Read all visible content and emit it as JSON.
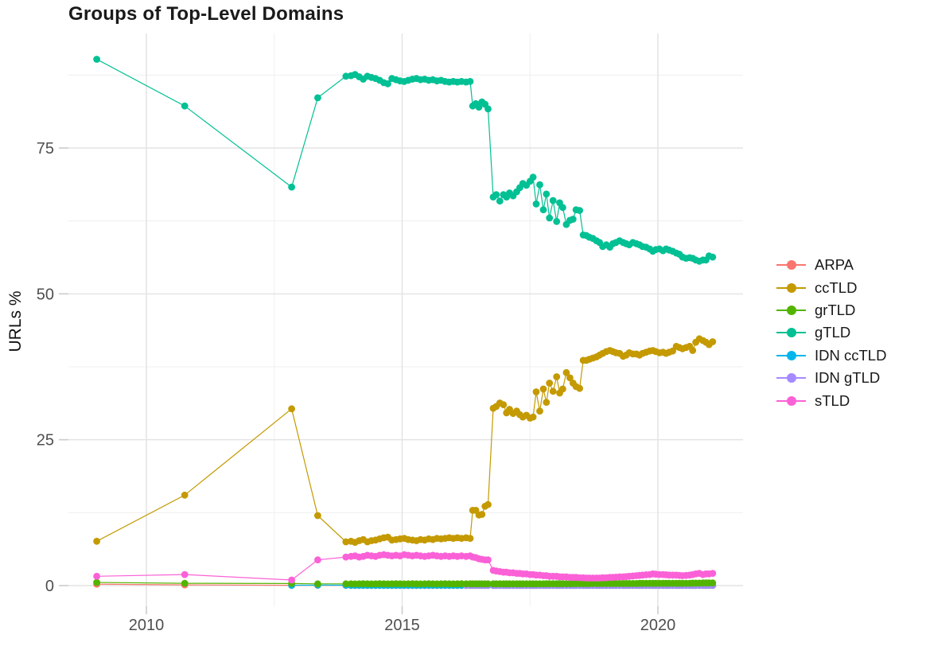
{
  "chart_data": {
    "type": "line",
    "title": "Groups of Top-Level Domains",
    "xlabel": "",
    "ylabel": "URLs %",
    "legend_position": "right",
    "grid": true,
    "x_axis": {
      "ticks": [
        2010,
        2015,
        2020
      ],
      "tick_labels": [
        "2010",
        "2015",
        "2020"
      ],
      "minor": [
        2012.5,
        2017.5
      ],
      "range": [
        2008.43,
        2021.67
      ]
    },
    "y_axis": {
      "ticks": [
        0,
        25,
        50,
        75
      ],
      "tick_labels": [
        "0",
        "25",
        "50",
        "75"
      ],
      "minor": [
        12.5,
        37.5,
        62.5,
        87.5
      ],
      "range": [
        -4.5,
        94.7
      ]
    },
    "x": [
      2009.03,
      2010.75,
      2012.84,
      2013.35,
      2013.9,
      2014.0,
      2014.08,
      2014.16,
      2014.24,
      2014.32,
      2014.4,
      2014.48,
      2014.56,
      2014.64,
      2014.72,
      2014.8,
      2014.88,
      2014.96,
      2015.04,
      2015.12,
      2015.2,
      2015.28,
      2015.36,
      2015.44,
      2015.52,
      2015.6,
      2015.68,
      2015.76,
      2015.84,
      2015.92,
      2016.0,
      2016.08,
      2016.16,
      2016.25,
      2016.33,
      2016.38,
      2016.44,
      2016.5,
      2016.56,
      2016.62,
      2016.68,
      2016.78,
      2016.84,
      2016.91,
      2016.98,
      2017.04,
      2017.1,
      2017.17,
      2017.24,
      2017.3,
      2017.36,
      2017.43,
      2017.5,
      2017.56,
      2017.62,
      2017.69,
      2017.76,
      2017.82,
      2017.88,
      2017.95,
      2018.02,
      2018.08,
      2018.14,
      2018.21,
      2018.28,
      2018.34,
      2018.4,
      2018.47,
      2018.54,
      2018.6,
      2018.66,
      2018.73,
      2018.8,
      2018.86,
      2018.92,
      2018.99,
      2019.06,
      2019.12,
      2019.18,
      2019.25,
      2019.32,
      2019.38,
      2019.44,
      2019.51,
      2019.58,
      2019.64,
      2019.7,
      2019.77,
      2019.84,
      2019.9,
      2019.96,
      2020.03,
      2020.1,
      2020.16,
      2020.22,
      2020.29,
      2020.36,
      2020.42,
      2020.48,
      2020.55,
      2020.62,
      2020.68,
      2020.74,
      2020.81,
      2020.88,
      2020.94,
      2021.0,
      2021.07
    ],
    "draw_order": [
      "ARPA",
      "IDN ccTLD",
      "IDN gTLD",
      "ccTLD",
      "gTLD",
      "grTLD",
      "sTLD"
    ],
    "series": [
      {
        "name": "ARPA",
        "color": "#F8766D",
        "values": [
          0.25,
          0.12,
          0.06,
          0.05,
          0.04,
          0.03,
          0.03,
          0.03,
          0.03,
          0.03,
          0.03,
          0.03,
          0.03,
          0.03,
          0.03,
          0.03,
          0.03,
          0.03,
          0.03,
          0.03,
          0.03,
          0.03,
          0.03,
          0.03,
          0.03,
          0.03,
          0.03,
          0.03,
          0.03,
          0.03,
          0.03,
          0.03,
          0.03,
          0.03,
          0.03,
          0.03,
          0.03,
          0.03,
          0.03,
          0.03,
          0.03,
          0.03,
          0.03,
          0.03,
          0.03,
          0.03,
          0.03,
          0.03,
          0.03,
          0.03,
          0.03,
          0.03,
          0.03,
          0.03,
          0.03,
          0.03,
          0.03,
          0.03,
          0.03,
          0.03,
          0.03,
          0.03,
          0.03,
          0.03,
          0.03,
          0.03,
          0.03,
          0.03,
          0.03,
          0.03,
          0.03,
          0.03,
          0.03,
          0.03,
          0.03,
          0.03,
          0.03,
          0.03,
          0.03,
          0.03,
          0.03,
          0.03,
          0.03,
          0.03,
          0.03,
          0.03,
          0.03,
          0.03,
          0.03,
          0.03,
          0.03,
          0.03,
          0.03,
          0.03,
          0.03,
          0.03,
          0.03,
          0.03,
          0.03,
          0.03,
          0.03,
          0.03,
          0.03,
          0.03,
          0.03,
          0.03,
          0.03,
          0.03
        ]
      },
      {
        "name": "ccTLD",
        "color": "#C49A00",
        "values": [
          7.6,
          15.5,
          30.3,
          12.0,
          7.5,
          7.6,
          7.4,
          7.7,
          7.9,
          7.5,
          7.7,
          7.8,
          8.0,
          8.2,
          8.3,
          7.8,
          7.9,
          8.0,
          8.1,
          7.9,
          7.8,
          7.7,
          7.9,
          7.8,
          8.0,
          7.9,
          8.1,
          8.0,
          8.1,
          8.2,
          8.1,
          8.2,
          8.1,
          8.2,
          8.1,
          12.9,
          12.9,
          12.1,
          12.2,
          13.6,
          13.9,
          30.4,
          30.7,
          31.3,
          31.0,
          29.6,
          30.2,
          29.5,
          29.9,
          29.3,
          28.9,
          29.2,
          28.7,
          28.9,
          33.2,
          29.9,
          33.7,
          31.4,
          34.7,
          33.3,
          35.8,
          33.0,
          33.7,
          36.5,
          35.6,
          34.7,
          34.1,
          33.8,
          38.6,
          38.6,
          38.8,
          39.0,
          39.2,
          39.5,
          39.8,
          40.1,
          40.3,
          40.1,
          39.9,
          39.8,
          39.3,
          39.5,
          39.9,
          39.7,
          39.7,
          39.5,
          39.8,
          40.0,
          40.2,
          40.3,
          40.1,
          39.9,
          40.0,
          39.8,
          40.0,
          40.2,
          41.0,
          40.8,
          40.6,
          40.8,
          41.0,
          40.3,
          41.7,
          42.3,
          42.0,
          41.7,
          41.3,
          41.8
        ]
      },
      {
        "name": "grTLD",
        "color": "#53B400",
        "values": [
          0.55,
          0.4,
          0.35,
          0.3,
          0.3,
          0.3,
          0.28,
          0.3,
          0.32,
          0.3,
          0.28,
          0.3,
          0.32,
          0.3,
          0.28,
          0.3,
          0.32,
          0.3,
          0.28,
          0.3,
          0.32,
          0.3,
          0.28,
          0.3,
          0.32,
          0.3,
          0.28,
          0.3,
          0.32,
          0.3,
          0.28,
          0.3,
          0.32,
          0.3,
          0.3,
          0.3,
          0.3,
          0.3,
          0.3,
          0.3,
          0.3,
          0.3,
          0.3,
          0.3,
          0.3,
          0.3,
          0.3,
          0.3,
          0.3,
          0.3,
          0.3,
          0.3,
          0.3,
          0.3,
          0.3,
          0.3,
          0.3,
          0.32,
          0.32,
          0.32,
          0.32,
          0.32,
          0.32,
          0.32,
          0.32,
          0.34,
          0.34,
          0.34,
          0.34,
          0.34,
          0.34,
          0.35,
          0.35,
          0.35,
          0.35,
          0.35,
          0.35,
          0.35,
          0.35,
          0.35,
          0.35,
          0.35,
          0.35,
          0.35,
          0.35,
          0.38,
          0.38,
          0.38,
          0.38,
          0.38,
          0.38,
          0.4,
          0.4,
          0.4,
          0.4,
          0.4,
          0.4,
          0.4,
          0.4,
          0.4,
          0.4,
          0.42,
          0.42,
          0.42,
          0.45,
          0.45,
          0.45,
          0.45
        ]
      },
      {
        "name": "gTLD",
        "color": "#00C094",
        "values": [
          90.2,
          82.2,
          68.3,
          83.6,
          87.3,
          87.4,
          87.6,
          87.2,
          86.8,
          87.3,
          87.1,
          86.9,
          86.6,
          86.2,
          86.0,
          86.9,
          86.7,
          86.5,
          86.4,
          86.6,
          86.8,
          86.9,
          86.7,
          86.8,
          86.6,
          86.7,
          86.5,
          86.6,
          86.4,
          86.3,
          86.4,
          86.3,
          86.4,
          86.3,
          86.4,
          82.2,
          82.6,
          82.0,
          82.9,
          82.5,
          81.7,
          66.6,
          67.0,
          65.9,
          67.0,
          66.6,
          67.3,
          66.8,
          67.5,
          68.2,
          68.9,
          68.6,
          69.3,
          70.0,
          65.4,
          68.7,
          64.4,
          67.1,
          63.0,
          66.0,
          62.4,
          65.6,
          64.8,
          61.9,
          62.6,
          62.8,
          64.4,
          64.3,
          60.1,
          60.0,
          59.7,
          59.5,
          59.1,
          58.8,
          58.1,
          58.4,
          58.0,
          58.6,
          58.8,
          59.1,
          58.8,
          58.6,
          58.4,
          58.8,
          58.6,
          58.4,
          58.1,
          58.0,
          57.7,
          57.3,
          57.6,
          57.7,
          57.4,
          57.7,
          57.5,
          57.3,
          57.0,
          56.8,
          56.3,
          56.1,
          56.2,
          56.1,
          55.8,
          55.6,
          55.8,
          55.8,
          56.5,
          56.3
        ]
      },
      {
        "name": "IDN ccTLD",
        "color": "#00B6EB",
        "values": [
          null,
          null,
          0.05,
          0.1,
          0.07,
          0.05,
          0.05,
          0.05,
          0.05,
          0.05,
          0.05,
          0.05,
          0.05,
          0.05,
          0.05,
          0.05,
          0.05,
          0.05,
          0.05,
          0.05,
          0.05,
          0.05,
          0.05,
          0.05,
          0.05,
          0.05,
          0.05,
          0.05,
          0.05,
          0.05,
          0.05,
          0.05,
          0.05,
          0.05,
          0.05,
          0.05,
          0.05,
          0.05,
          0.05,
          0.05,
          0.05,
          0.05,
          0.05,
          0.05,
          0.05,
          0.05,
          0.05,
          0.05,
          0.05,
          0.05,
          0.05,
          0.05,
          0.05,
          0.05,
          0.05,
          0.05,
          0.05,
          0.05,
          0.05,
          0.05,
          0.05,
          0.05,
          0.05,
          0.05,
          0.05,
          0.05,
          0.05,
          0.05,
          0.05,
          0.05,
          0.05,
          0.05,
          0.05,
          0.05,
          0.05,
          0.05,
          0.05,
          0.05,
          0.05,
          0.05,
          0.05,
          0.05,
          0.05,
          0.05,
          0.05,
          0.05,
          0.05,
          0.05,
          0.05,
          0.05,
          0.05,
          0.05,
          0.05,
          0.05,
          0.05,
          0.05,
          0.05,
          0.05,
          0.05,
          0.05,
          0.05,
          0.05,
          0.05,
          0.05,
          0.05,
          0.05,
          0.05,
          0.05
        ]
      },
      {
        "name": "IDN gTLD",
        "color": "#A58AFF",
        "values": [
          null,
          null,
          null,
          null,
          null,
          null,
          null,
          null,
          null,
          null,
          null,
          null,
          null,
          null,
          null,
          null,
          null,
          null,
          null,
          null,
          null,
          null,
          null,
          null,
          null,
          null,
          null,
          null,
          null,
          null,
          null,
          null,
          null,
          0.07,
          0.07,
          0.07,
          0.07,
          0.07,
          0.07,
          0.07,
          0.07,
          0.07,
          0.07,
          0.07,
          0.07,
          0.07,
          0.07,
          0.07,
          0.07,
          0.07,
          0.07,
          0.07,
          0.07,
          0.07,
          0.07,
          0.07,
          0.07,
          0.07,
          0.07,
          0.07,
          0.07,
          0.07,
          0.07,
          0.07,
          0.07,
          0.07,
          0.07,
          0.07,
          0.07,
          0.07,
          0.07,
          0.07,
          0.07,
          0.07,
          0.07,
          0.07,
          0.07,
          0.07,
          0.07,
          0.07,
          0.07,
          0.07,
          0.07,
          0.07,
          0.07,
          0.07,
          0.07,
          0.07,
          0.07,
          0.07,
          0.07,
          0.07,
          0.07,
          0.07,
          0.07,
          0.07,
          0.07,
          0.07,
          0.07,
          0.07,
          0.07,
          0.07,
          0.07,
          0.07,
          0.07,
          0.07,
          0.07,
          0.07
        ]
      },
      {
        "name": "sTLD",
        "color": "#FB61D7",
        "values": [
          1.6,
          1.9,
          0.95,
          4.4,
          4.9,
          5.0,
          5.1,
          4.9,
          5.0,
          5.2,
          5.1,
          5.0,
          5.2,
          5.3,
          5.2,
          5.1,
          5.2,
          5.1,
          5.3,
          5.2,
          5.1,
          5.2,
          5.1,
          5.0,
          5.1,
          5.2,
          5.1,
          5.0,
          5.1,
          5.0,
          5.1,
          5.0,
          5.1,
          5.0,
          5.1,
          4.9,
          4.8,
          4.6,
          4.5,
          4.4,
          4.4,
          2.6,
          2.5,
          2.4,
          2.3,
          2.3,
          2.2,
          2.2,
          2.1,
          2.1,
          2.0,
          2.0,
          1.9,
          1.9,
          1.8,
          1.8,
          1.7,
          1.7,
          1.6,
          1.6,
          1.6,
          1.5,
          1.5,
          1.5,
          1.4,
          1.4,
          1.4,
          1.35,
          1.35,
          1.3,
          1.3,
          1.3,
          1.3,
          1.3,
          1.35,
          1.35,
          1.4,
          1.4,
          1.45,
          1.5,
          1.5,
          1.55,
          1.6,
          1.65,
          1.7,
          1.75,
          1.8,
          1.85,
          1.9,
          2.0,
          1.95,
          1.9,
          1.9,
          1.85,
          1.8,
          1.8,
          1.8,
          1.75,
          1.7,
          1.75,
          1.8,
          1.9,
          2.0,
          2.1,
          1.9,
          2.0,
          2.0,
          2.1
        ]
      }
    ]
  }
}
